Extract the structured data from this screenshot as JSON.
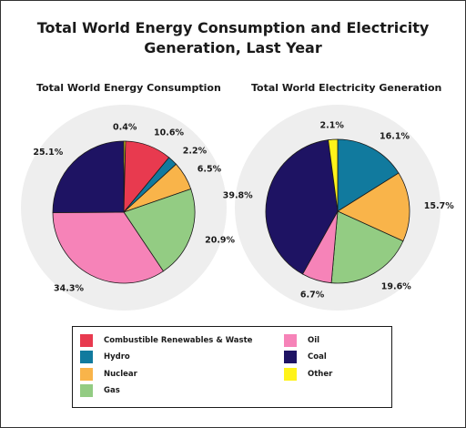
{
  "title_line1": "Total World Energy Consumption and Electricity",
  "title_line2": "Generation, Last Year",
  "colors": {
    "Combustible Renewables & Waste": "#e83a4f",
    "Hydro": "#117a9e",
    "Nuclear": "#f9b44a",
    "Gas": "#93cc83",
    "Oil": "#f683b8",
    "Coal": "#1e1363",
    "Other": "#fff31a"
  },
  "legend": {
    "left": [
      "Combustible Renewables & Waste",
      "Hydro",
      "Nuclear",
      "Gas"
    ],
    "right": [
      "Oil",
      "Coal",
      "Other"
    ]
  },
  "chart_data": [
    {
      "type": "pie",
      "title": "Total World Energy Consumption",
      "start": "top, clockwise",
      "slices": [
        {
          "name": "Other",
          "value": 0.4,
          "label": "0.4%"
        },
        {
          "name": "Combustible Renewables & Waste",
          "value": 10.6,
          "label": "10.6%"
        },
        {
          "name": "Hydro",
          "value": 2.2,
          "label": "2.2%"
        },
        {
          "name": "Nuclear",
          "value": 6.5,
          "label": "6.5%"
        },
        {
          "name": "Gas",
          "value": 20.9,
          "label": "20.9%"
        },
        {
          "name": "Oil",
          "value": 34.3,
          "label": "34.3%"
        },
        {
          "name": "Coal",
          "value": 25.1,
          "label": "25.1%"
        }
      ]
    },
    {
      "type": "pie",
      "title": "Total World Electricity Generation",
      "start": "top, clockwise",
      "slices": [
        {
          "name": "Hydro",
          "value": 16.1,
          "label": "16.1%"
        },
        {
          "name": "Nuclear",
          "value": 15.7,
          "label": "15.7%"
        },
        {
          "name": "Gas",
          "value": 19.6,
          "label": "19.6%"
        },
        {
          "name": "Oil",
          "value": 6.7,
          "label": "6.7%"
        },
        {
          "name": "Coal",
          "value": 39.8,
          "label": "39.8%"
        },
        {
          "name": "Other",
          "value": 2.1,
          "label": "2.1%"
        }
      ]
    }
  ]
}
